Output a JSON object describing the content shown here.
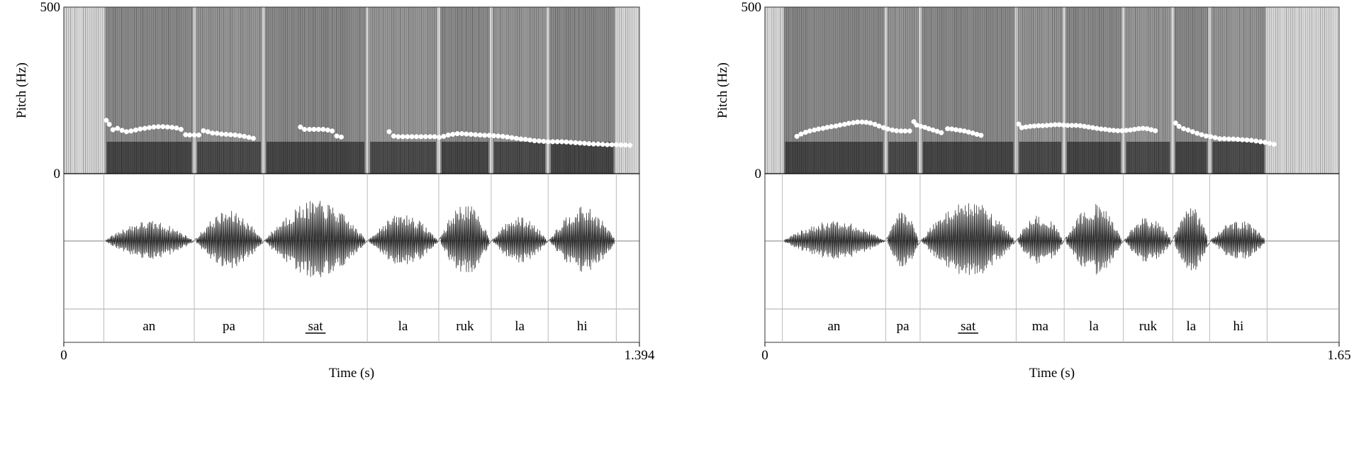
{
  "chart_data": [
    {
      "type": "line",
      "title": "",
      "ylabel": "Pitch (Hz)",
      "xlabel": "Time (s)",
      "ylim": [
        0,
        500
      ],
      "y_ticks": [
        "500",
        "0"
      ],
      "xlim": [
        0,
        1.394
      ],
      "x_ticks": [
        "0",
        "1.394"
      ],
      "syllables": [
        "an",
        "pa",
        "sat",
        "la",
        "ruk",
        "la",
        "hi"
      ],
      "underlined": "sat",
      "boundaries": [
        0.097,
        0.316,
        0.484,
        0.735,
        0.908,
        1.035,
        1.173,
        1.338
      ],
      "series": [
        {
          "values": [
            [
              0.103,
              160
            ],
            [
              0.11,
              148
            ],
            [
              0.119,
              132
            ],
            [
              0.13,
              136
            ],
            [
              0.141,
              130
            ],
            [
              0.152,
              126
            ],
            [
              0.163,
              128
            ],
            [
              0.174,
              131
            ],
            [
              0.185,
              134
            ],
            [
              0.196,
              136
            ],
            [
              0.207,
              138
            ],
            [
              0.218,
              140
            ],
            [
              0.229,
              141
            ],
            [
              0.24,
              141
            ],
            [
              0.251,
              140
            ],
            [
              0.262,
              139
            ],
            [
              0.273,
              137
            ],
            [
              0.284,
              133
            ],
            [
              0.295,
              117
            ],
            [
              0.305,
              116
            ],
            [
              0.316,
              116
            ],
            [
              0.327,
              116
            ],
            [
              0.338,
              129
            ],
            [
              0.349,
              126
            ],
            [
              0.36,
              122
            ],
            [
              0.371,
              121
            ],
            [
              0.382,
              119
            ],
            [
              0.393,
              118
            ],
            [
              0.404,
              117
            ],
            [
              0.415,
              116
            ],
            [
              0.426,
              114
            ],
            [
              0.437,
              112
            ],
            [
              0.448,
              109
            ],
            [
              0.459,
              106
            ],
            [
              0.573,
              140
            ],
            [
              0.583,
              133
            ],
            [
              0.595,
              133
            ],
            [
              0.606,
              133
            ],
            [
              0.617,
              133
            ],
            [
              0.628,
              133
            ],
            [
              0.639,
              131
            ],
            [
              0.65,
              128
            ],
            [
              0.661,
              113
            ],
            [
              0.672,
              110
            ],
            [
              0.788,
              126
            ],
            [
              0.799,
              113
            ],
            [
              0.81,
              111
            ],
            [
              0.821,
              111
            ],
            [
              0.832,
              111
            ],
            [
              0.843,
              111
            ],
            [
              0.854,
              111
            ],
            [
              0.865,
              111
            ],
            [
              0.876,
              111
            ],
            [
              0.887,
              111
            ],
            [
              0.898,
              111
            ],
            [
              0.909,
              109
            ],
            [
              0.92,
              112
            ],
            [
              0.931,
              116
            ],
            [
              0.942,
              118
            ],
            [
              0.953,
              120
            ],
            [
              0.964,
              120
            ],
            [
              0.975,
              119
            ],
            [
              0.986,
              118
            ],
            [
              0.997,
              117
            ],
            [
              1.008,
              116
            ],
            [
              1.019,
              115
            ],
            [
              1.03,
              115
            ],
            [
              1.041,
              114
            ],
            [
              1.052,
              113
            ],
            [
              1.063,
              112
            ],
            [
              1.074,
              110
            ],
            [
              1.085,
              108
            ],
            [
              1.096,
              106
            ],
            [
              1.107,
              104
            ],
            [
              1.118,
              103
            ],
            [
              1.129,
              101
            ],
            [
              1.14,
              99
            ],
            [
              1.151,
              98
            ],
            [
              1.162,
              97
            ],
            [
              1.173,
              96
            ],
            [
              1.184,
              96
            ],
            [
              1.195,
              96
            ],
            [
              1.206,
              96
            ],
            [
              1.217,
              95
            ],
            [
              1.228,
              94
            ],
            [
              1.239,
              93
            ],
            [
              1.25,
              92
            ],
            [
              1.261,
              91
            ],
            [
              1.272,
              90
            ],
            [
              1.283,
              89
            ],
            [
              1.294,
              89
            ],
            [
              1.305,
              88
            ],
            [
              1.316,
              87
            ],
            [
              1.327,
              87
            ],
            [
              1.338,
              87
            ],
            [
              1.349,
              86
            ],
            [
              1.36,
              86
            ],
            [
              1.371,
              85
            ]
          ]
        }
      ]
    },
    {
      "type": "line",
      "title": "",
      "ylabel": "Pitch (Hz)",
      "xlabel": "Time (s)",
      "ylim": [
        0,
        500
      ],
      "y_ticks": [
        "500",
        "0"
      ],
      "xlim": [
        0,
        1.65
      ],
      "x_ticks": [
        "0",
        "1.65"
      ],
      "syllables": [
        "an",
        "pa",
        "sat",
        "ma",
        "la",
        "ruk",
        "la",
        "hi"
      ],
      "underlined": "sat",
      "boundaries": [
        0.05,
        0.347,
        0.446,
        0.722,
        0.86,
        1.03,
        1.172,
        1.278,
        1.443
      ],
      "series": [
        {
          "values": [
            [
              0.092,
              112
            ],
            [
              0.104,
              119
            ],
            [
              0.117,
              124
            ],
            [
              0.129,
              128
            ],
            [
              0.142,
              131
            ],
            [
              0.154,
              134
            ],
            [
              0.167,
              136
            ],
            [
              0.179,
              139
            ],
            [
              0.191,
              141
            ],
            [
              0.204,
              143
            ],
            [
              0.216,
              146
            ],
            [
              0.229,
              148
            ],
            [
              0.241,
              151
            ],
            [
              0.254,
              153
            ],
            [
              0.266,
              155
            ],
            [
              0.279,
              155
            ],
            [
              0.291,
              154
            ],
            [
              0.303,
              152
            ],
            [
              0.316,
              148
            ],
            [
              0.328,
              143
            ],
            [
              0.341,
              138
            ],
            [
              0.353,
              134
            ],
            [
              0.366,
              131
            ],
            [
              0.378,
              129
            ],
            [
              0.391,
              128
            ],
            [
              0.403,
              128
            ],
            [
              0.416,
              128
            ],
            [
              0.428,
              156
            ],
            [
              0.436,
              146
            ],
            [
              0.448,
              142
            ],
            [
              0.46,
              139
            ],
            [
              0.471,
              135
            ],
            [
              0.483,
              131
            ],
            [
              0.495,
              127
            ],
            [
              0.507,
              123
            ],
            [
              0.525,
              135
            ],
            [
              0.537,
              134
            ],
            [
              0.549,
              132
            ],
            [
              0.561,
              130
            ],
            [
              0.573,
              128
            ],
            [
              0.585,
              125
            ],
            [
              0.597,
              122
            ],
            [
              0.609,
              118
            ],
            [
              0.621,
              115
            ],
            [
              0.729,
              149
            ],
            [
              0.738,
              138
            ],
            [
              0.75,
              140
            ],
            [
              0.762,
              142
            ],
            [
              0.774,
              143
            ],
            [
              0.786,
              144
            ],
            [
              0.798,
              144
            ],
            [
              0.81,
              145
            ],
            [
              0.822,
              146
            ],
            [
              0.834,
              147
            ],
            [
              0.846,
              147
            ],
            [
              0.858,
              146
            ],
            [
              0.87,
              145
            ],
            [
              0.882,
              145
            ],
            [
              0.894,
              145
            ],
            [
              0.906,
              144
            ],
            [
              0.918,
              142
            ],
            [
              0.93,
              140
            ],
            [
              0.942,
              138
            ],
            [
              0.954,
              136
            ],
            [
              0.966,
              134
            ],
            [
              0.978,
              133
            ],
            [
              0.99,
              131
            ],
            [
              1.002,
              130
            ],
            [
              1.014,
              129
            ],
            [
              1.026,
              129
            ],
            [
              1.038,
              130
            ],
            [
              1.05,
              131
            ],
            [
              1.062,
              133
            ],
            [
              1.074,
              135
            ],
            [
              1.086,
              136
            ],
            [
              1.098,
              135
            ],
            [
              1.11,
              132
            ],
            [
              1.122,
              129
            ],
            [
              1.18,
              152
            ],
            [
              1.19,
              142
            ],
            [
              1.203,
              135
            ],
            [
              1.216,
              131
            ],
            [
              1.229,
              126
            ],
            [
              1.242,
              121
            ],
            [
              1.255,
              117
            ],
            [
              1.268,
              113
            ],
            [
              1.281,
              111
            ],
            [
              1.294,
              108
            ],
            [
              1.307,
              105
            ],
            [
              1.32,
              105
            ],
            [
              1.333,
              104
            ],
            [
              1.346,
              104
            ],
            [
              1.359,
              103
            ],
            [
              1.372,
              102
            ],
            [
              1.385,
              101
            ],
            [
              1.398,
              100
            ],
            [
              1.411,
              98
            ],
            [
              1.424,
              96
            ],
            [
              1.437,
              94
            ],
            [
              1.45,
              91
            ],
            [
              1.463,
              88
            ]
          ]
        }
      ]
    }
  ]
}
